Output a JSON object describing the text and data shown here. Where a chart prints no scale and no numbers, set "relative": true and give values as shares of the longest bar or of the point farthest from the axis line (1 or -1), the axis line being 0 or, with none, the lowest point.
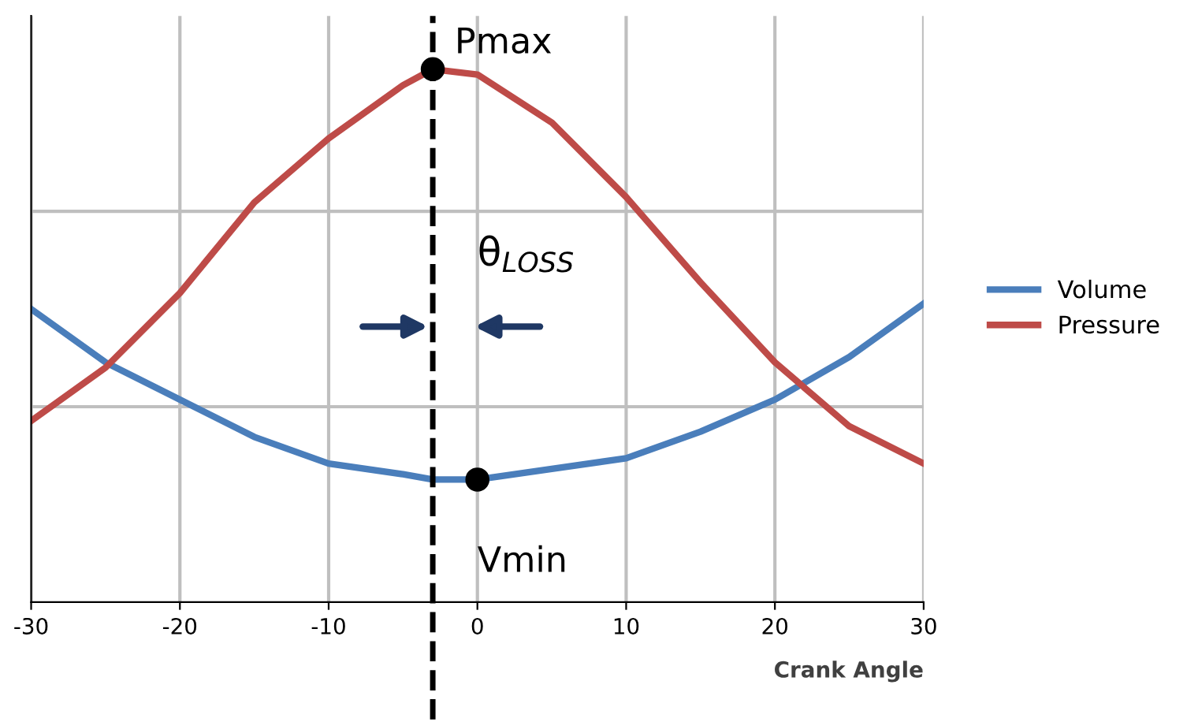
{
  "chart_data": {
    "type": "line",
    "relative": true,
    "xlabel": "Crank Angle",
    "xlim": [
      -30,
      30
    ],
    "xticks": [
      {
        "value": -30,
        "label": "-30"
      },
      {
        "value": -20,
        "label": "-20"
      },
      {
        "value": -10,
        "label": "-10"
      },
      0,
      10,
      20,
      30
    ],
    "grid": true,
    "legend": "right",
    "tick_labels": "x",
    "series": [
      {
        "name": "Volume",
        "color": "#4a7ebb",
        "x": [
          -30,
          -25,
          -20,
          -15,
          -10,
          -5,
          -3,
          0,
          5,
          10,
          15,
          20,
          25,
          30
        ],
        "values": [
          0.55,
          0.45,
          0.38,
          0.31,
          0.26,
          0.24,
          0.23,
          0.23,
          0.25,
          0.27,
          0.32,
          0.38,
          0.46,
          0.56
        ]
      },
      {
        "name": "Pressure",
        "color": "#be4b48",
        "x": [
          -30,
          -25,
          -20,
          -15,
          -10,
          -5,
          -3,
          0,
          5,
          10,
          15,
          20,
          25,
          30
        ],
        "values": [
          0.34,
          0.44,
          0.58,
          0.75,
          0.87,
          0.97,
          1,
          0.99,
          0.9,
          0.76,
          0.6,
          0.45,
          0.33,
          0.26
        ]
      }
    ],
    "ref_lines": [
      {
        "axis": "x",
        "value": -3,
        "color": "#000000",
        "line_style": "dashed"
      }
    ],
    "annotations": [
      {
        "text": "Pmax",
        "x": -3,
        "y": 1
      },
      {
        "text": "Vmin",
        "x": 0,
        "y": 0.23
      },
      "θ$_{LOSS}$"
    ]
  }
}
